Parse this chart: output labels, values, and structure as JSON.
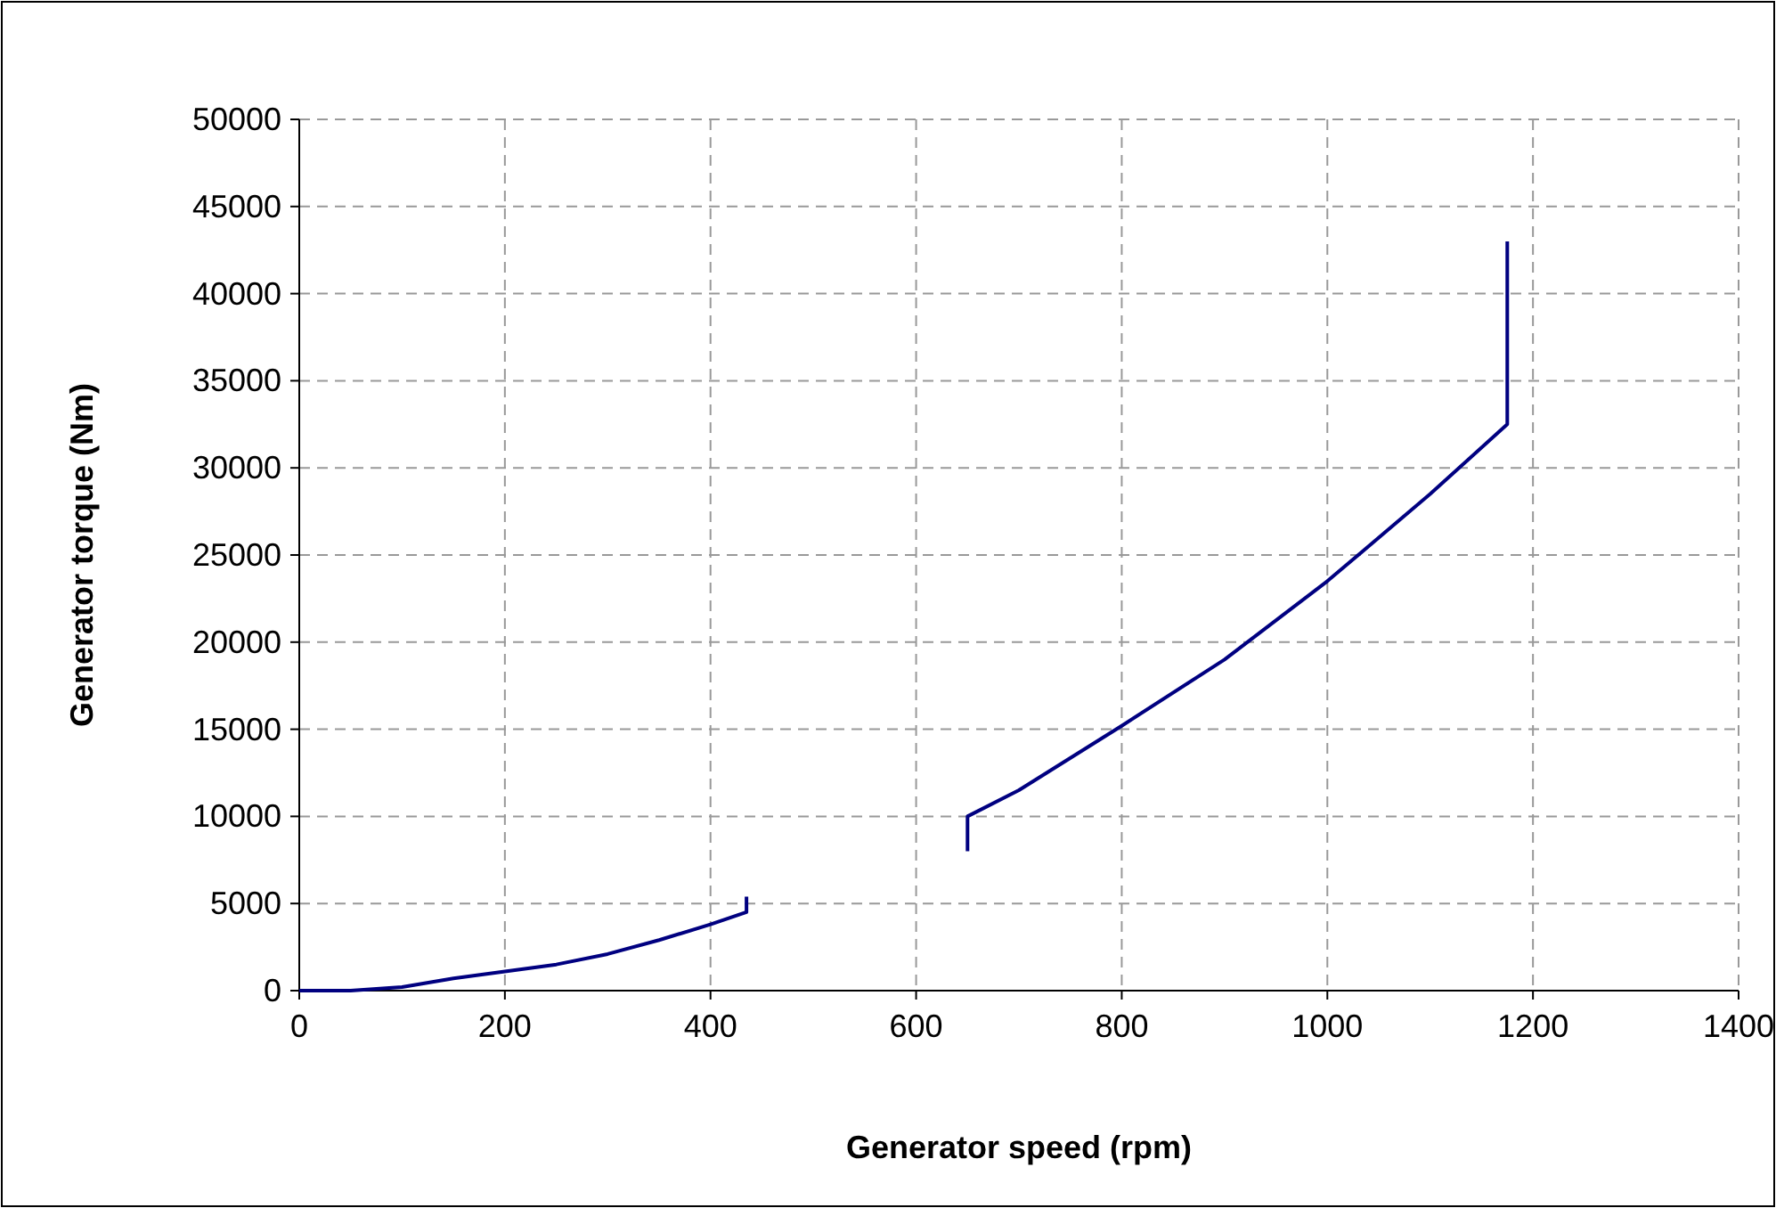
{
  "chart_data": {
    "type": "line",
    "xlabel": "Generator speed (rpm)",
    "ylabel": "Generator torque (Nm)",
    "x": [
      0,
      50,
      100,
      150,
      200,
      250,
      300,
      350,
      400,
      435,
      435,
      null,
      650,
      650,
      700,
      800,
      900,
      1000,
      1100,
      1175,
      1175
    ],
    "series": [
      {
        "color": "#000080",
        "values": [
          0,
          0,
          200,
          700,
          1100,
          1500,
          2100,
          2900,
          3800,
          4500,
          5400,
          null,
          8000,
          10000,
          11500,
          15200,
          19000,
          23500,
          28500,
          32500,
          43000
        ]
      }
    ],
    "xlim": [
      0,
      1400
    ],
    "xticks": [
      0,
      200,
      400,
      600,
      800,
      1000,
      1200,
      1400
    ],
    "ylim": [
      0,
      50000
    ],
    "yticks": [
      0,
      5000,
      10000,
      15000,
      20000,
      25000,
      30000,
      35000,
      40000,
      45000,
      50000
    ],
    "grid": true,
    "marker": "none",
    "line_style": "solid"
  }
}
